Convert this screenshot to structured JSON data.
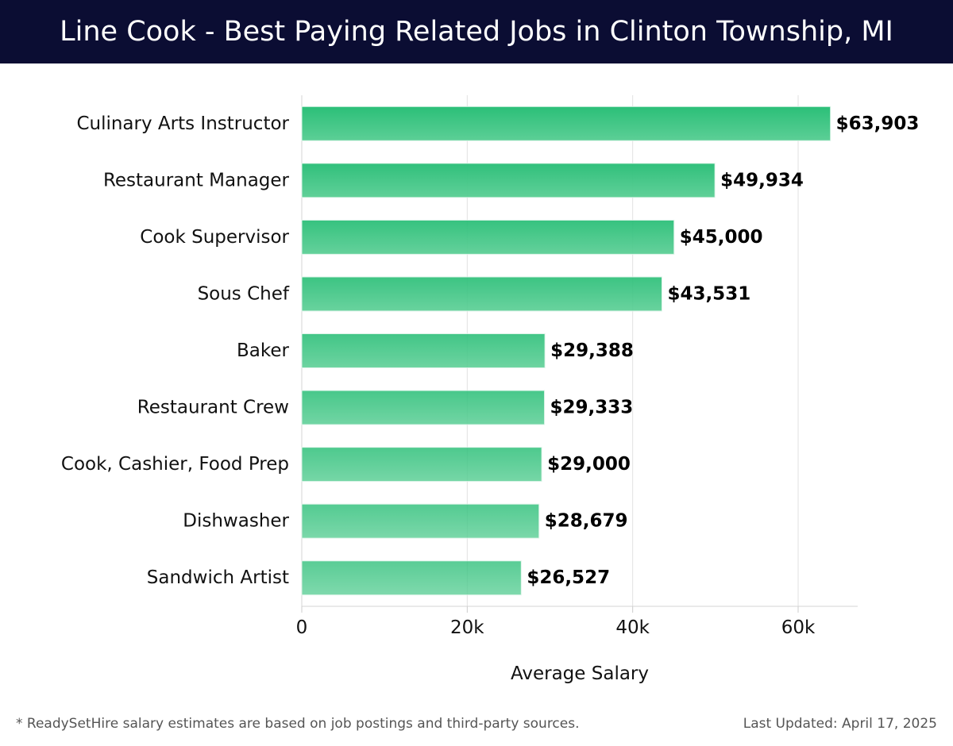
{
  "header": {
    "title": "Line Cook - Best Paying Related Jobs in Clinton Township, MI"
  },
  "chart_data": {
    "type": "bar",
    "orientation": "horizontal",
    "title": "Line Cook - Best Paying Related Jobs in Clinton Township, MI",
    "categories": [
      "Culinary Arts Instructor",
      "Restaurant Manager",
      "Cook Supervisor",
      "Sous Chef",
      "Baker",
      "Restaurant Crew",
      "Cook, Cashier, Food Prep",
      "Dishwasher",
      "Sandwich Artist"
    ],
    "values": [
      63903,
      49934,
      45000,
      43531,
      29388,
      29333,
      29000,
      28679,
      26527
    ],
    "value_labels": [
      "$63,903",
      "$49,934",
      "$45,000",
      "$43,531",
      "$29,388",
      "$29,333",
      "$29,000",
      "$28,679",
      "$26,527"
    ],
    "xlabel": "Average Salary",
    "ylabel": "",
    "xlim": [
      0,
      67200
    ],
    "xticks": [
      0,
      20000,
      40000,
      60000
    ],
    "xtick_labels": [
      "0",
      "20k",
      "40k",
      "60k"
    ],
    "grid": true,
    "bar_color_start": "#2bbf78",
    "bar_color_end": "#5ccf96"
  },
  "footer": {
    "note": "* ReadySetHire salary estimates are based on job postings and third-party sources.",
    "updated": "Last Updated: April 17, 2025"
  }
}
